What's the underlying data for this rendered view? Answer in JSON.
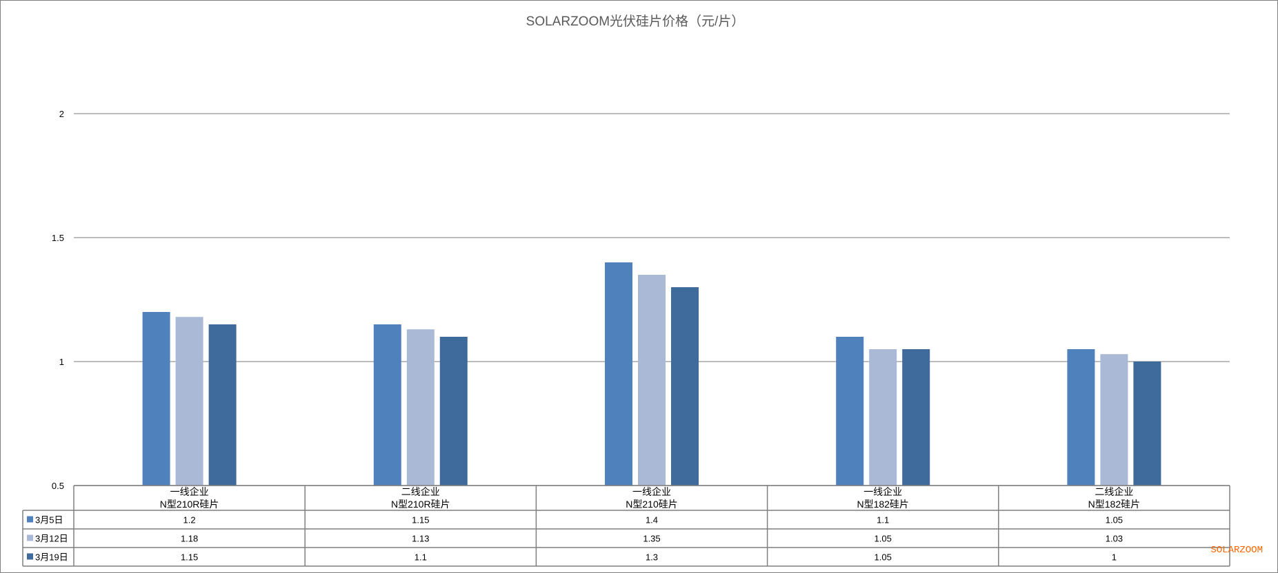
{
  "chart_data": {
    "type": "bar",
    "title": "SOLARZOOM光伏硅片价格（元/片）",
    "categories": [
      [
        "一线企业",
        "N型210R硅片"
      ],
      [
        "二线企业",
        "N型210R硅片"
      ],
      [
        "一线企业",
        "N型210硅片"
      ],
      [
        "一线企业",
        "N型182硅片"
      ],
      [
        "二线企业",
        "N型182硅片"
      ]
    ],
    "series": [
      {
        "name": "3月5日",
        "color": "#4f81bd",
        "values": [
          1.2,
          1.15,
          1.4,
          1.1,
          1.05
        ]
      },
      {
        "name": "3月12日",
        "color": "#aab9d5",
        "values": [
          1.18,
          1.13,
          1.35,
          1.05,
          1.03
        ]
      },
      {
        "name": "3月19日",
        "color": "#3f6a9c",
        "values": [
          1.15,
          1.1,
          1.3,
          1.05,
          1
        ]
      }
    ],
    "ylim": [
      0.5,
      2.2
    ],
    "yticks": [
      0.5,
      1,
      1.5,
      2
    ],
    "grid": true,
    "legend": "data-table",
    "data_table": true
  },
  "watermark": "SOLARZOOM"
}
